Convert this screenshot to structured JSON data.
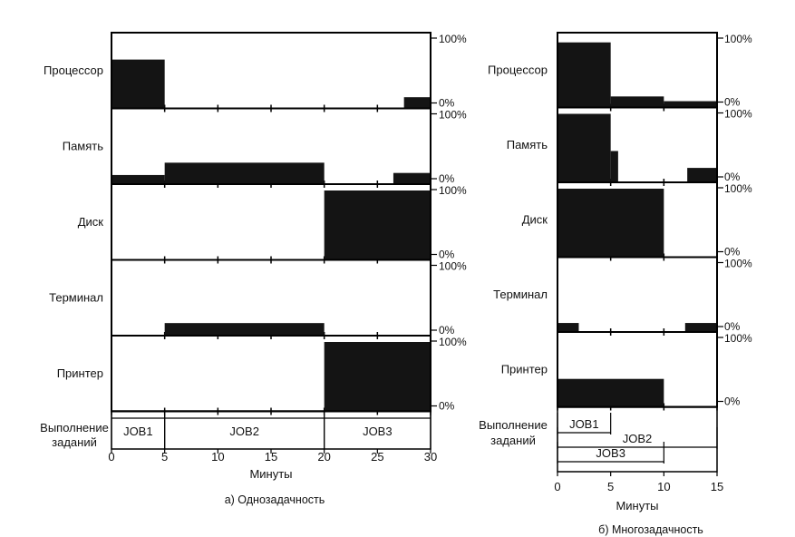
{
  "chart_data": [
    {
      "type": "timeline",
      "title": "а) Однозадачность",
      "xlabel": "Минуты",
      "xlim": [
        0,
        30
      ],
      "x_ticks": [
        0,
        5,
        10,
        15,
        20,
        25,
        30
      ],
      "resources": [
        {
          "name": "Процессор",
          "segments": [
            {
              "start": 0,
              "end": 5,
              "level": 0.7
            },
            {
              "start": 27.5,
              "end": 30,
              "level": 0.15
            }
          ]
        },
        {
          "name": "Память",
          "segments": [
            {
              "start": 0,
              "end": 5,
              "level": 0.12
            },
            {
              "start": 5,
              "end": 20,
              "level": 0.3
            },
            {
              "start": 26.5,
              "end": 30,
              "level": 0.15
            }
          ]
        },
        {
          "name": "Диск",
          "segments": [
            {
              "start": 20,
              "end": 30,
              "level": 1.0
            }
          ]
        },
        {
          "name": "Терминал",
          "segments": [
            {
              "start": 5,
              "end": 20,
              "level": 0.17
            }
          ]
        },
        {
          "name": "Принтер",
          "segments": [
            {
              "start": 20,
              "end": 30,
              "level": 1.0
            }
          ]
        }
      ],
      "pct_labels": {
        "top": "100%",
        "bottom": "0%"
      },
      "jobs_label": [
        "Выполнение",
        "заданий"
      ],
      "jobs": [
        {
          "name": "JOB1",
          "start": 0,
          "end": 5
        },
        {
          "name": "JOB2",
          "start": 5,
          "end": 20
        },
        {
          "name": "JOB3",
          "start": 20,
          "end": 30
        }
      ]
    },
    {
      "type": "timeline",
      "title": "б) Многозадачность",
      "xlabel": "Минуты",
      "xlim": [
        0,
        15
      ],
      "x_ticks": [
        0,
        5,
        10,
        15
      ],
      "resources": [
        {
          "name": "Процессор",
          "segments": [
            {
              "start": 0,
              "end": 5,
              "level": 0.95
            },
            {
              "start": 5,
              "end": 10,
              "level": 0.15
            },
            {
              "start": 10,
              "end": 15,
              "level": 0.08
            }
          ]
        },
        {
          "name": "Память",
          "segments": [
            {
              "start": 0,
              "end": 5,
              "level": 1.0
            },
            {
              "start": 5,
              "end": 5.7,
              "level": 0.45
            },
            {
              "start": 12.2,
              "end": 15,
              "level": 0.2
            }
          ]
        },
        {
          "name": "Диск",
          "segments": [
            {
              "start": 0,
              "end": 10,
              "level": 1.0
            }
          ]
        },
        {
          "name": "Терминал",
          "segments": [
            {
              "start": 0,
              "end": 2,
              "level": 0.12
            },
            {
              "start": 12,
              "end": 15,
              "level": 0.12
            }
          ]
        },
        {
          "name": "Принтер",
          "segments": [
            {
              "start": 0,
              "end": 10,
              "level": 0.4
            }
          ]
        }
      ],
      "pct_labels": {
        "top": "100%",
        "bottom": "0%"
      },
      "jobs_label": [
        "Выполнение",
        "заданий"
      ],
      "jobs": [
        {
          "name": "JOB1",
          "start": 0,
          "end": 5
        },
        {
          "name": "JOB2",
          "start": 0,
          "end": 15
        },
        {
          "name": "JOB3",
          "start": 0,
          "end": 10
        }
      ]
    }
  ]
}
